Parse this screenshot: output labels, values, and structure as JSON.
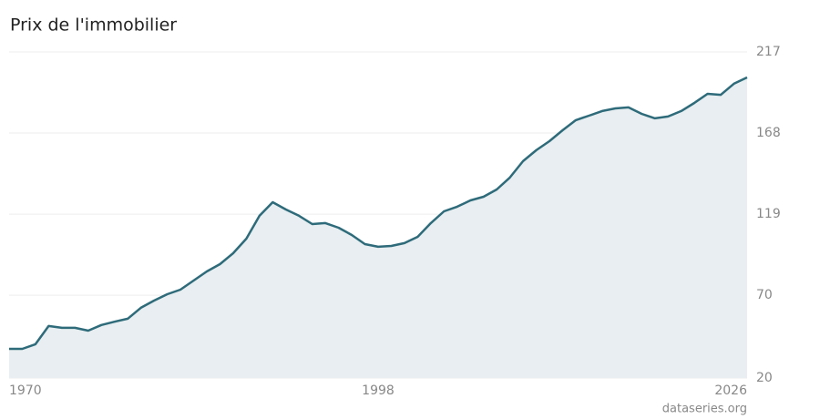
{
  "chart_data": {
    "type": "area",
    "title": "Prix de l'immobilier",
    "source": "dataseries.org",
    "x": [
      1970,
      1971,
      1972,
      1973,
      1974,
      1975,
      1976,
      1977,
      1978,
      1979,
      1980,
      1981,
      1982,
      1983,
      1984,
      1985,
      1986,
      1987,
      1988,
      1989,
      1990,
      1991,
      1992,
      1993,
      1994,
      1995,
      1996,
      1997,
      1998,
      1999,
      2000,
      2001,
      2002,
      2003,
      2004,
      2005,
      2006,
      2007,
      2008,
      2009,
      2010,
      2011,
      2012,
      2013,
      2014,
      2015,
      2016,
      2017,
      2018,
      2019,
      2020,
      2021,
      2022,
      2023,
      2024,
      2025,
      2026
    ],
    "values": [
      37.6,
      37.6,
      40.4,
      51.4,
      50.3,
      50.3,
      48.6,
      52,
      54,
      55.8,
      62.4,
      66.8,
      70.6,
      73.4,
      78.9,
      84.4,
      88.8,
      95.4,
      104.2,
      118,
      126.2,
      121.8,
      118,
      113,
      113.6,
      110.8,
      106.4,
      100.9,
      99.3,
      99.8,
      101.5,
      105.3,
      113.6,
      120.7,
      123.5,
      127.3,
      129.5,
      133.9,
      141.1,
      151,
      157.6,
      163.1,
      169.7,
      175.8,
      178.5,
      181.3,
      182.9,
      183.5,
      179.6,
      176.9,
      178,
      181.3,
      186.2,
      191.7,
      191.1,
      197.8,
      201.6
    ],
    "color": "#2e6b7a",
    "fill": "#e8eef1",
    "xlim": [
      1970,
      2026
    ],
    "xticks": [
      1970,
      1998,
      2026
    ],
    "ylim": [
      20,
      217
    ],
    "yticks": [
      20,
      70,
      119,
      168,
      217
    ],
    "grid": true
  }
}
